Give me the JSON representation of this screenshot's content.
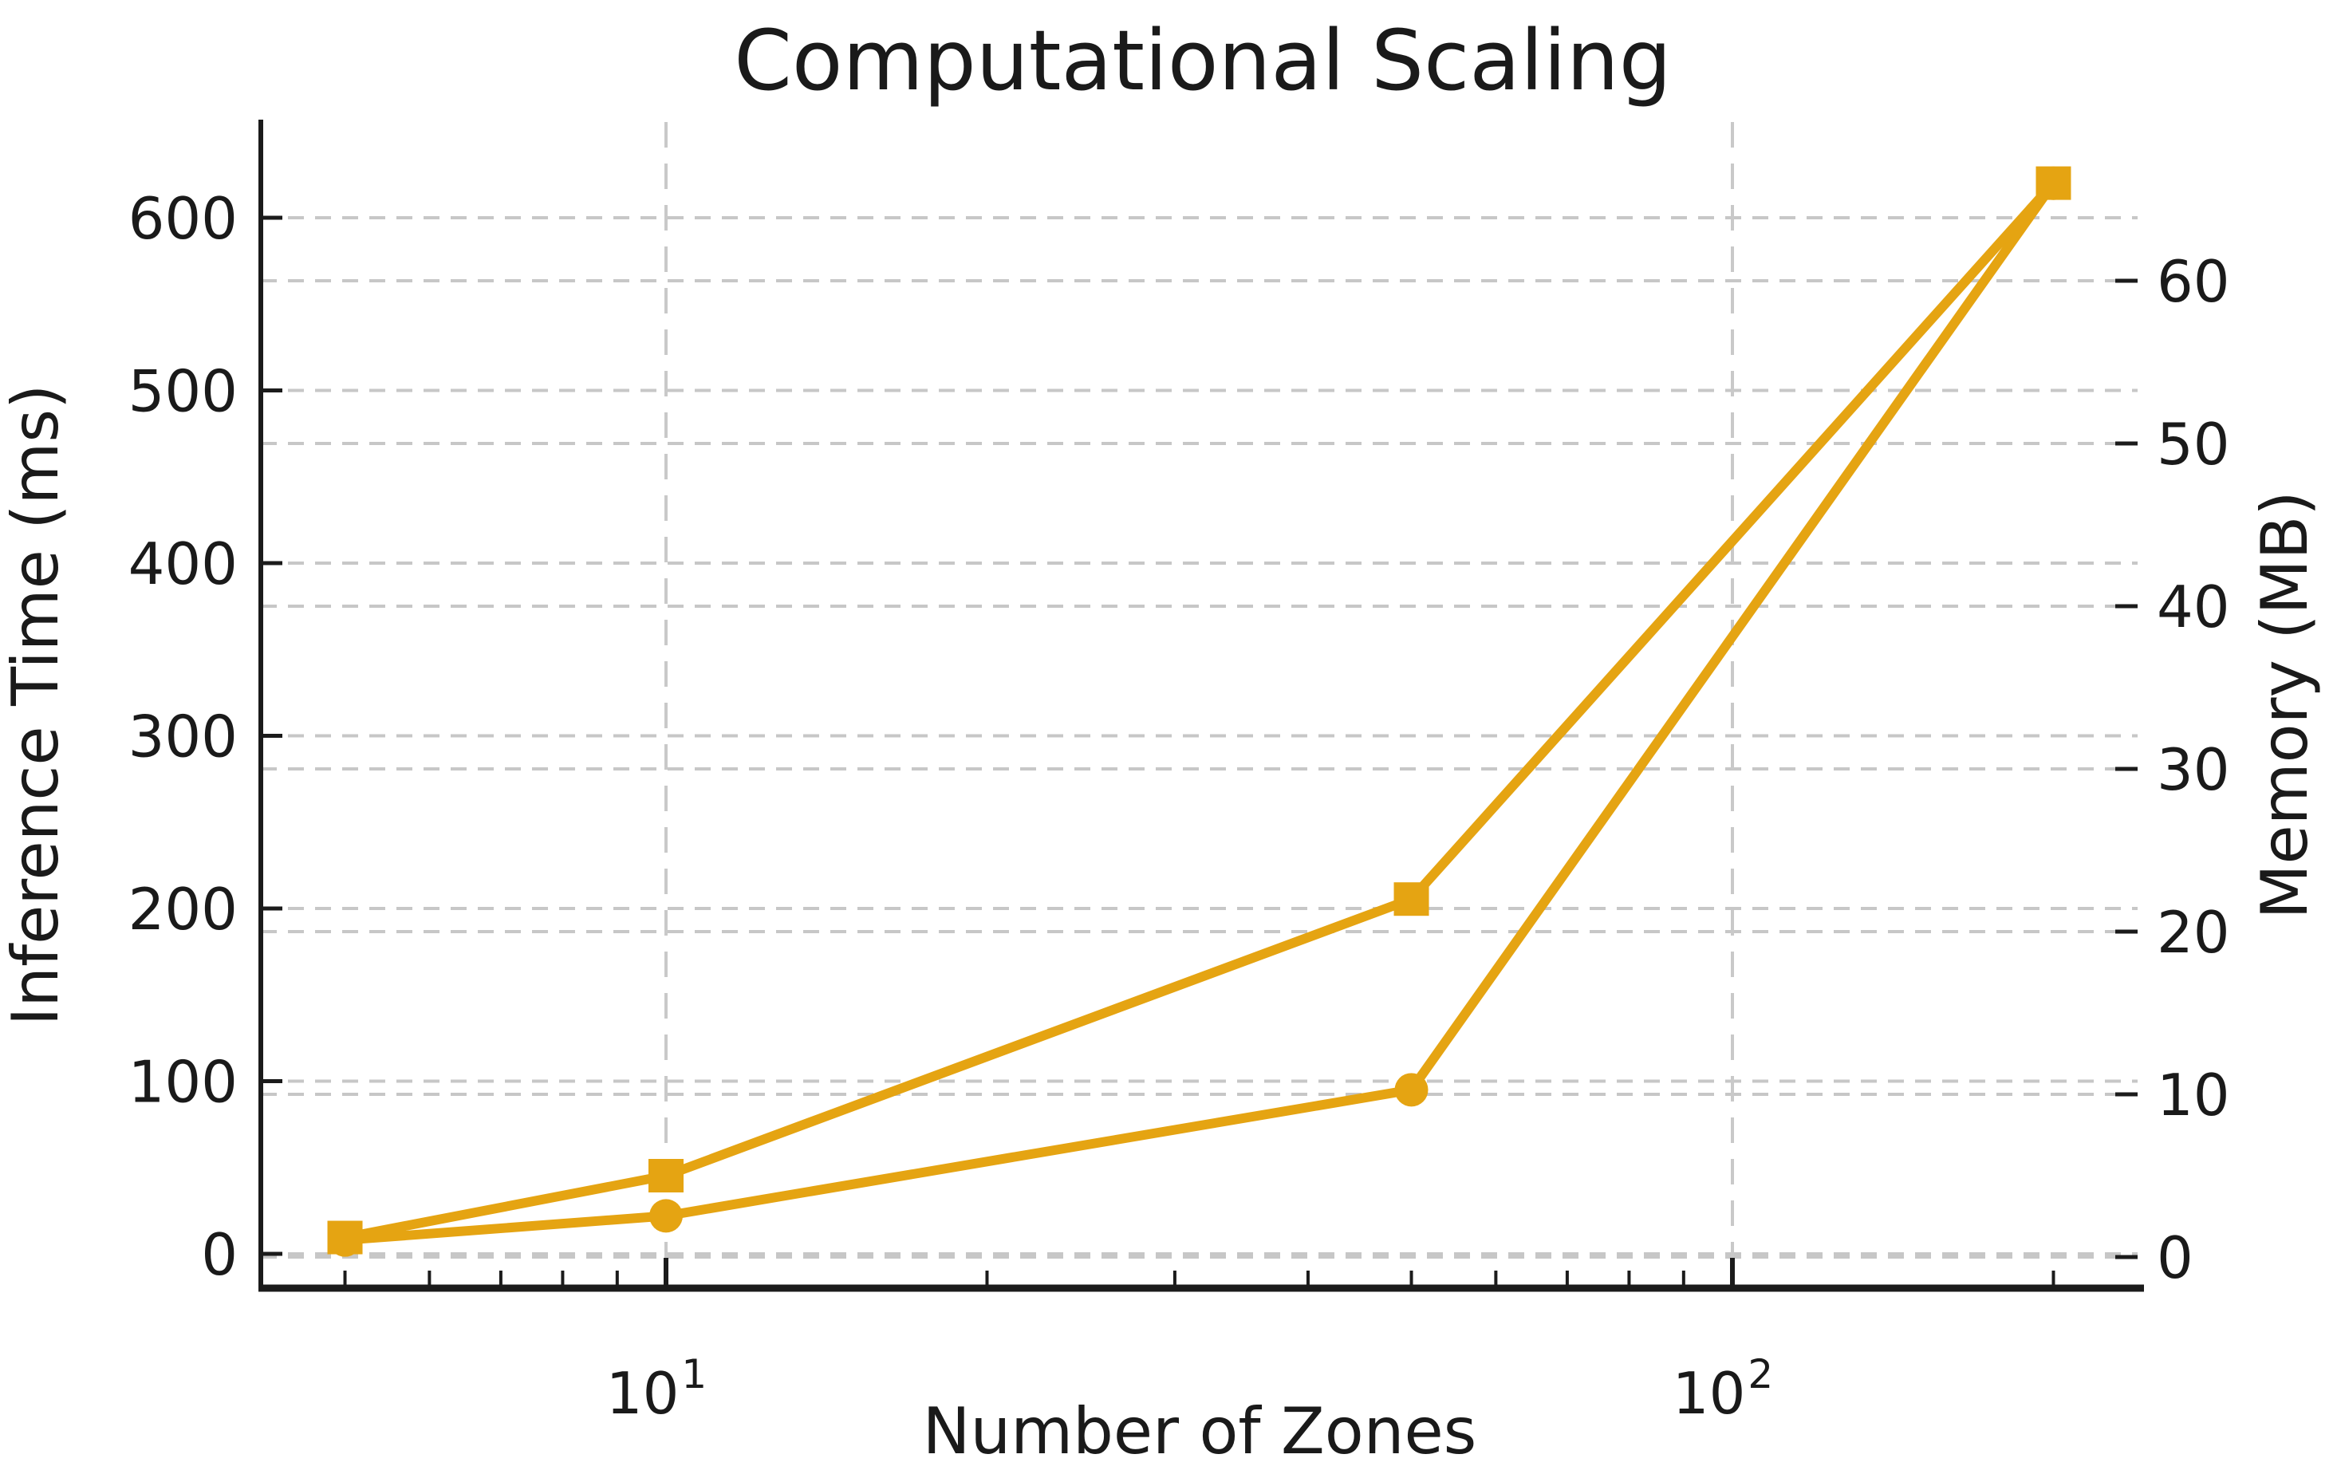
{
  "chart_data": {
    "type": "line",
    "title": "Computational Scaling",
    "xlabel": "Number of Zones",
    "x_scale": "log",
    "x": [
      5,
      10,
      50,
      200
    ],
    "x_major_ticks": [
      {
        "value": 10,
        "mantissa": "10",
        "exponent": "1"
      },
      {
        "value": 100,
        "mantissa": "10",
        "exponent": "2"
      }
    ],
    "x_minor_ticks": [
      5,
      6,
      7,
      8,
      9,
      20,
      30,
      40,
      50,
      60,
      70,
      80,
      90,
      200
    ],
    "xlim": [
      4.2,
      240
    ],
    "left_axis": {
      "label": "Inference Time (ms)",
      "ticks": [
        0,
        100,
        200,
        300,
        400,
        500,
        600
      ],
      "range": [
        -20,
        655
      ]
    },
    "right_axis": {
      "label": "Memory (MB)",
      "ticks": [
        0,
        10,
        20,
        30,
        40,
        50,
        60
      ],
      "range": [
        -2.1,
        69.7
      ]
    },
    "series": [
      {
        "name": "Inference Time",
        "axis": "left",
        "marker": "circle",
        "values": [
          8,
          22,
          95,
          620
        ]
      },
      {
        "name": "Memory",
        "axis": "right",
        "marker": "square",
        "values": [
          1.2,
          5,
          22,
          66
        ]
      }
    ],
    "grid": {
      "show": true,
      "style": "dashed",
      "legend": "none"
    }
  },
  "colors": {
    "series": "#E5A412",
    "grid": "#c7c7c7",
    "grid_vertical": "#c9c9c9",
    "spine": "#1b1b1b",
    "text": "#1a1a1a"
  }
}
